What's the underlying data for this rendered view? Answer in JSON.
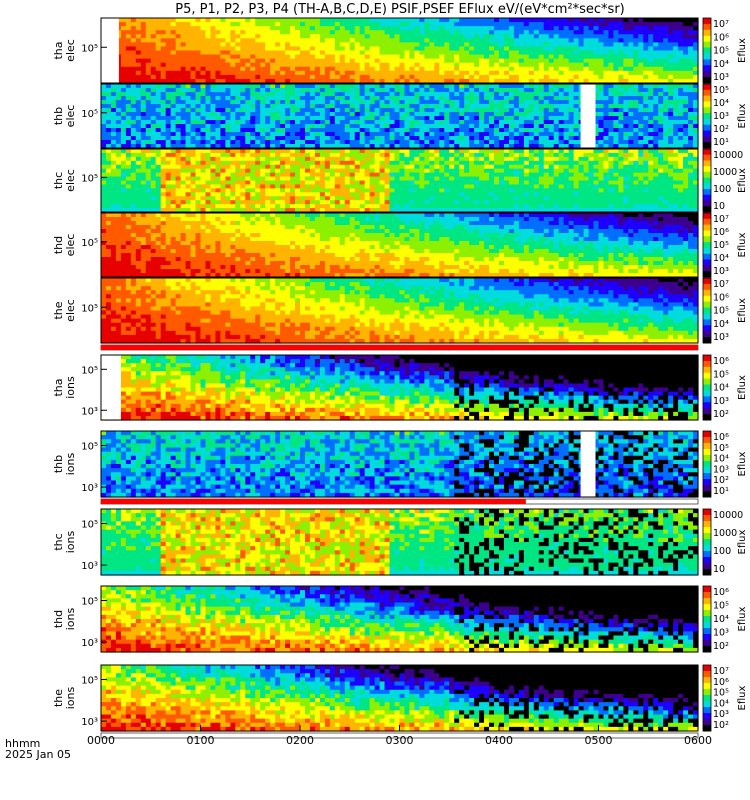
{
  "chart_data": {
    "type": "heatmap",
    "title": "P5, P1, P2, P3, P4 (TH-A,B,C,D,E) PSIF,PSEF EFlux eV/(eV*cm²*sec*sr)",
    "x_label_line1": "hhmm",
    "x_label_line2": "2025 Jan 05",
    "x_ticks": [
      "0000",
      "0100",
      "0200",
      "0300",
      "0400",
      "0500",
      "0600"
    ],
    "x_range_hours": [
      0,
      6
    ],
    "colorbar_label": "Eflux",
    "panels": [
      {
        "id": "tha-elec",
        "probe": "tha",
        "species": "elec",
        "ylabel_top": "tha",
        "ylabel_bottom": "elec",
        "y_scale": "log",
        "y_ticks": [
          "10⁵"
        ],
        "y_tick_values": [
          100000
        ],
        "cbar_ticks": [
          "10⁷",
          "10⁶",
          "10⁵",
          "10⁴",
          "10³"
        ],
        "cbar_tick_values": [
          10000000,
          1000000,
          100000,
          10000,
          1000
        ],
        "flag_bar_until_hour": 6,
        "gap_hours": [
          [
            0,
            0.18
          ]
        ]
      },
      {
        "id": "thb-elec",
        "probe": "thb",
        "species": "elec",
        "ylabel_top": "thb",
        "ylabel_bottom": "elec",
        "y_scale": "log",
        "y_ticks": [
          "10⁵"
        ],
        "y_tick_values": [
          100000
        ],
        "cbar_ticks": [
          "10⁵",
          "10⁴",
          "10³",
          "10²",
          "10¹"
        ],
        "cbar_tick_values": [
          100000,
          10000,
          1000,
          100,
          10
        ],
        "flag_bar_until_hour": 0,
        "gap_hours": [
          [
            4.82,
            4.97
          ]
        ]
      },
      {
        "id": "thc-elec",
        "probe": "thc",
        "species": "elec",
        "ylabel_top": "thc",
        "ylabel_bottom": "elec",
        "y_scale": "log",
        "y_ticks": [
          "10⁵"
        ],
        "y_tick_values": [
          100000
        ],
        "cbar_ticks": [
          "10000",
          "1000",
          "100",
          "10"
        ],
        "cbar_tick_values": [
          10000,
          1000,
          100,
          10
        ],
        "flag_bar_until_hour": 0,
        "gap_hours": []
      },
      {
        "id": "thd-elec",
        "probe": "thd",
        "species": "elec",
        "ylabel_top": "thd",
        "ylabel_bottom": "elec",
        "y_scale": "log",
        "y_ticks": [
          "10⁵"
        ],
        "y_tick_values": [
          100000
        ],
        "cbar_ticks": [
          "10⁷",
          "10⁶",
          "10⁵",
          "10⁴",
          "10³"
        ],
        "cbar_tick_values": [
          10000000,
          1000000,
          100000,
          10000,
          1000
        ],
        "flag_bar_until_hour": 0,
        "gap_hours": []
      },
      {
        "id": "the-elec",
        "probe": "the",
        "species": "elec",
        "ylabel_top": "the",
        "ylabel_bottom": "elec",
        "y_scale": "log",
        "y_ticks": [
          "10⁵"
        ],
        "y_tick_values": [
          100000
        ],
        "cbar_ticks": [
          "10⁷",
          "10⁶",
          "10⁵",
          "10⁴",
          "10³"
        ],
        "cbar_tick_values": [
          10000000,
          1000000,
          100000,
          10000,
          1000
        ],
        "flag_bar_until_hour": 6,
        "gap_hours": []
      },
      {
        "id": "tha-ions",
        "probe": "tha",
        "species": "ions",
        "ylabel_top": "tha",
        "ylabel_bottom": "ions",
        "y_scale": "log",
        "y_ticks": [
          "10⁵",
          "10³"
        ],
        "y_tick_values": [
          100000,
          1000
        ],
        "cbar_ticks": [
          "10⁶",
          "10⁵",
          "10⁴",
          "10³",
          "10²"
        ],
        "cbar_tick_values": [
          1000000,
          100000,
          10000,
          1000,
          100
        ],
        "flag_bar_until_hour": 4.27,
        "gap_hours": [
          [
            0,
            0.2
          ]
        ]
      },
      {
        "id": "thb-ions",
        "probe": "thb",
        "species": "ions",
        "ylabel_top": "thb",
        "ylabel_bottom": "ions",
        "y_scale": "log",
        "y_ticks": [
          "10⁵",
          "10³"
        ],
        "y_tick_values": [
          100000,
          1000
        ],
        "cbar_ticks": [
          "10⁶",
          "10⁵",
          "10⁴",
          "10³",
          "10²",
          "10¹"
        ],
        "cbar_tick_values": [
          1000000,
          100000,
          10000,
          1000,
          100,
          10
        ],
        "flag_bar_until_hour": 4.27,
        "gap_hours": [
          [
            4.82,
            4.97
          ]
        ]
      },
      {
        "id": "thc-ions",
        "probe": "thc",
        "species": "ions",
        "ylabel_top": "thc",
        "ylabel_bottom": "ions",
        "y_scale": "log",
        "y_ticks": [
          "10⁵",
          "10³"
        ],
        "y_tick_values": [
          100000,
          1000
        ],
        "cbar_ticks": [
          "10000",
          "1000",
          "100",
          "10"
        ],
        "cbar_tick_values": [
          10000,
          1000,
          100,
          10
        ],
        "flag_bar_until_hour": 0,
        "gap_hours": []
      },
      {
        "id": "thd-ions",
        "probe": "thd",
        "species": "ions",
        "ylabel_top": "thd",
        "ylabel_bottom": "ions",
        "y_scale": "log",
        "y_ticks": [
          "10⁵",
          "10³"
        ],
        "y_tick_values": [
          100000,
          1000
        ],
        "cbar_ticks": [
          "10⁶",
          "10⁵",
          "10⁴",
          "10³",
          "10²"
        ],
        "cbar_tick_values": [
          1000000,
          100000,
          10000,
          1000,
          100
        ],
        "flag_bar_until_hour": 6,
        "gap_hours": []
      },
      {
        "id": "the-ions",
        "probe": "the",
        "species": "ions",
        "ylabel_top": "the",
        "ylabel_bottom": "ions",
        "y_scale": "log",
        "y_ticks": [
          "10⁵",
          "10³"
        ],
        "y_tick_values": [
          100000,
          1000
        ],
        "cbar_ticks": [
          "10⁷",
          "10⁶",
          "10⁵",
          "10⁴",
          "10³",
          "10²"
        ],
        "cbar_tick_values": [
          10000000,
          1000000,
          100000,
          10000,
          1000,
          100
        ],
        "flag_bar_until_hour": 0,
        "gap_hours": []
      }
    ],
    "colormap": [
      "#000000",
      "#3c008c",
      "#1e00ff",
      "#006eff",
      "#00dcdc",
      "#00e682",
      "#8cf000",
      "#ffff00",
      "#ffb400",
      "#ff5a00",
      "#e60000"
    ],
    "flag_color": "#ff0000"
  }
}
